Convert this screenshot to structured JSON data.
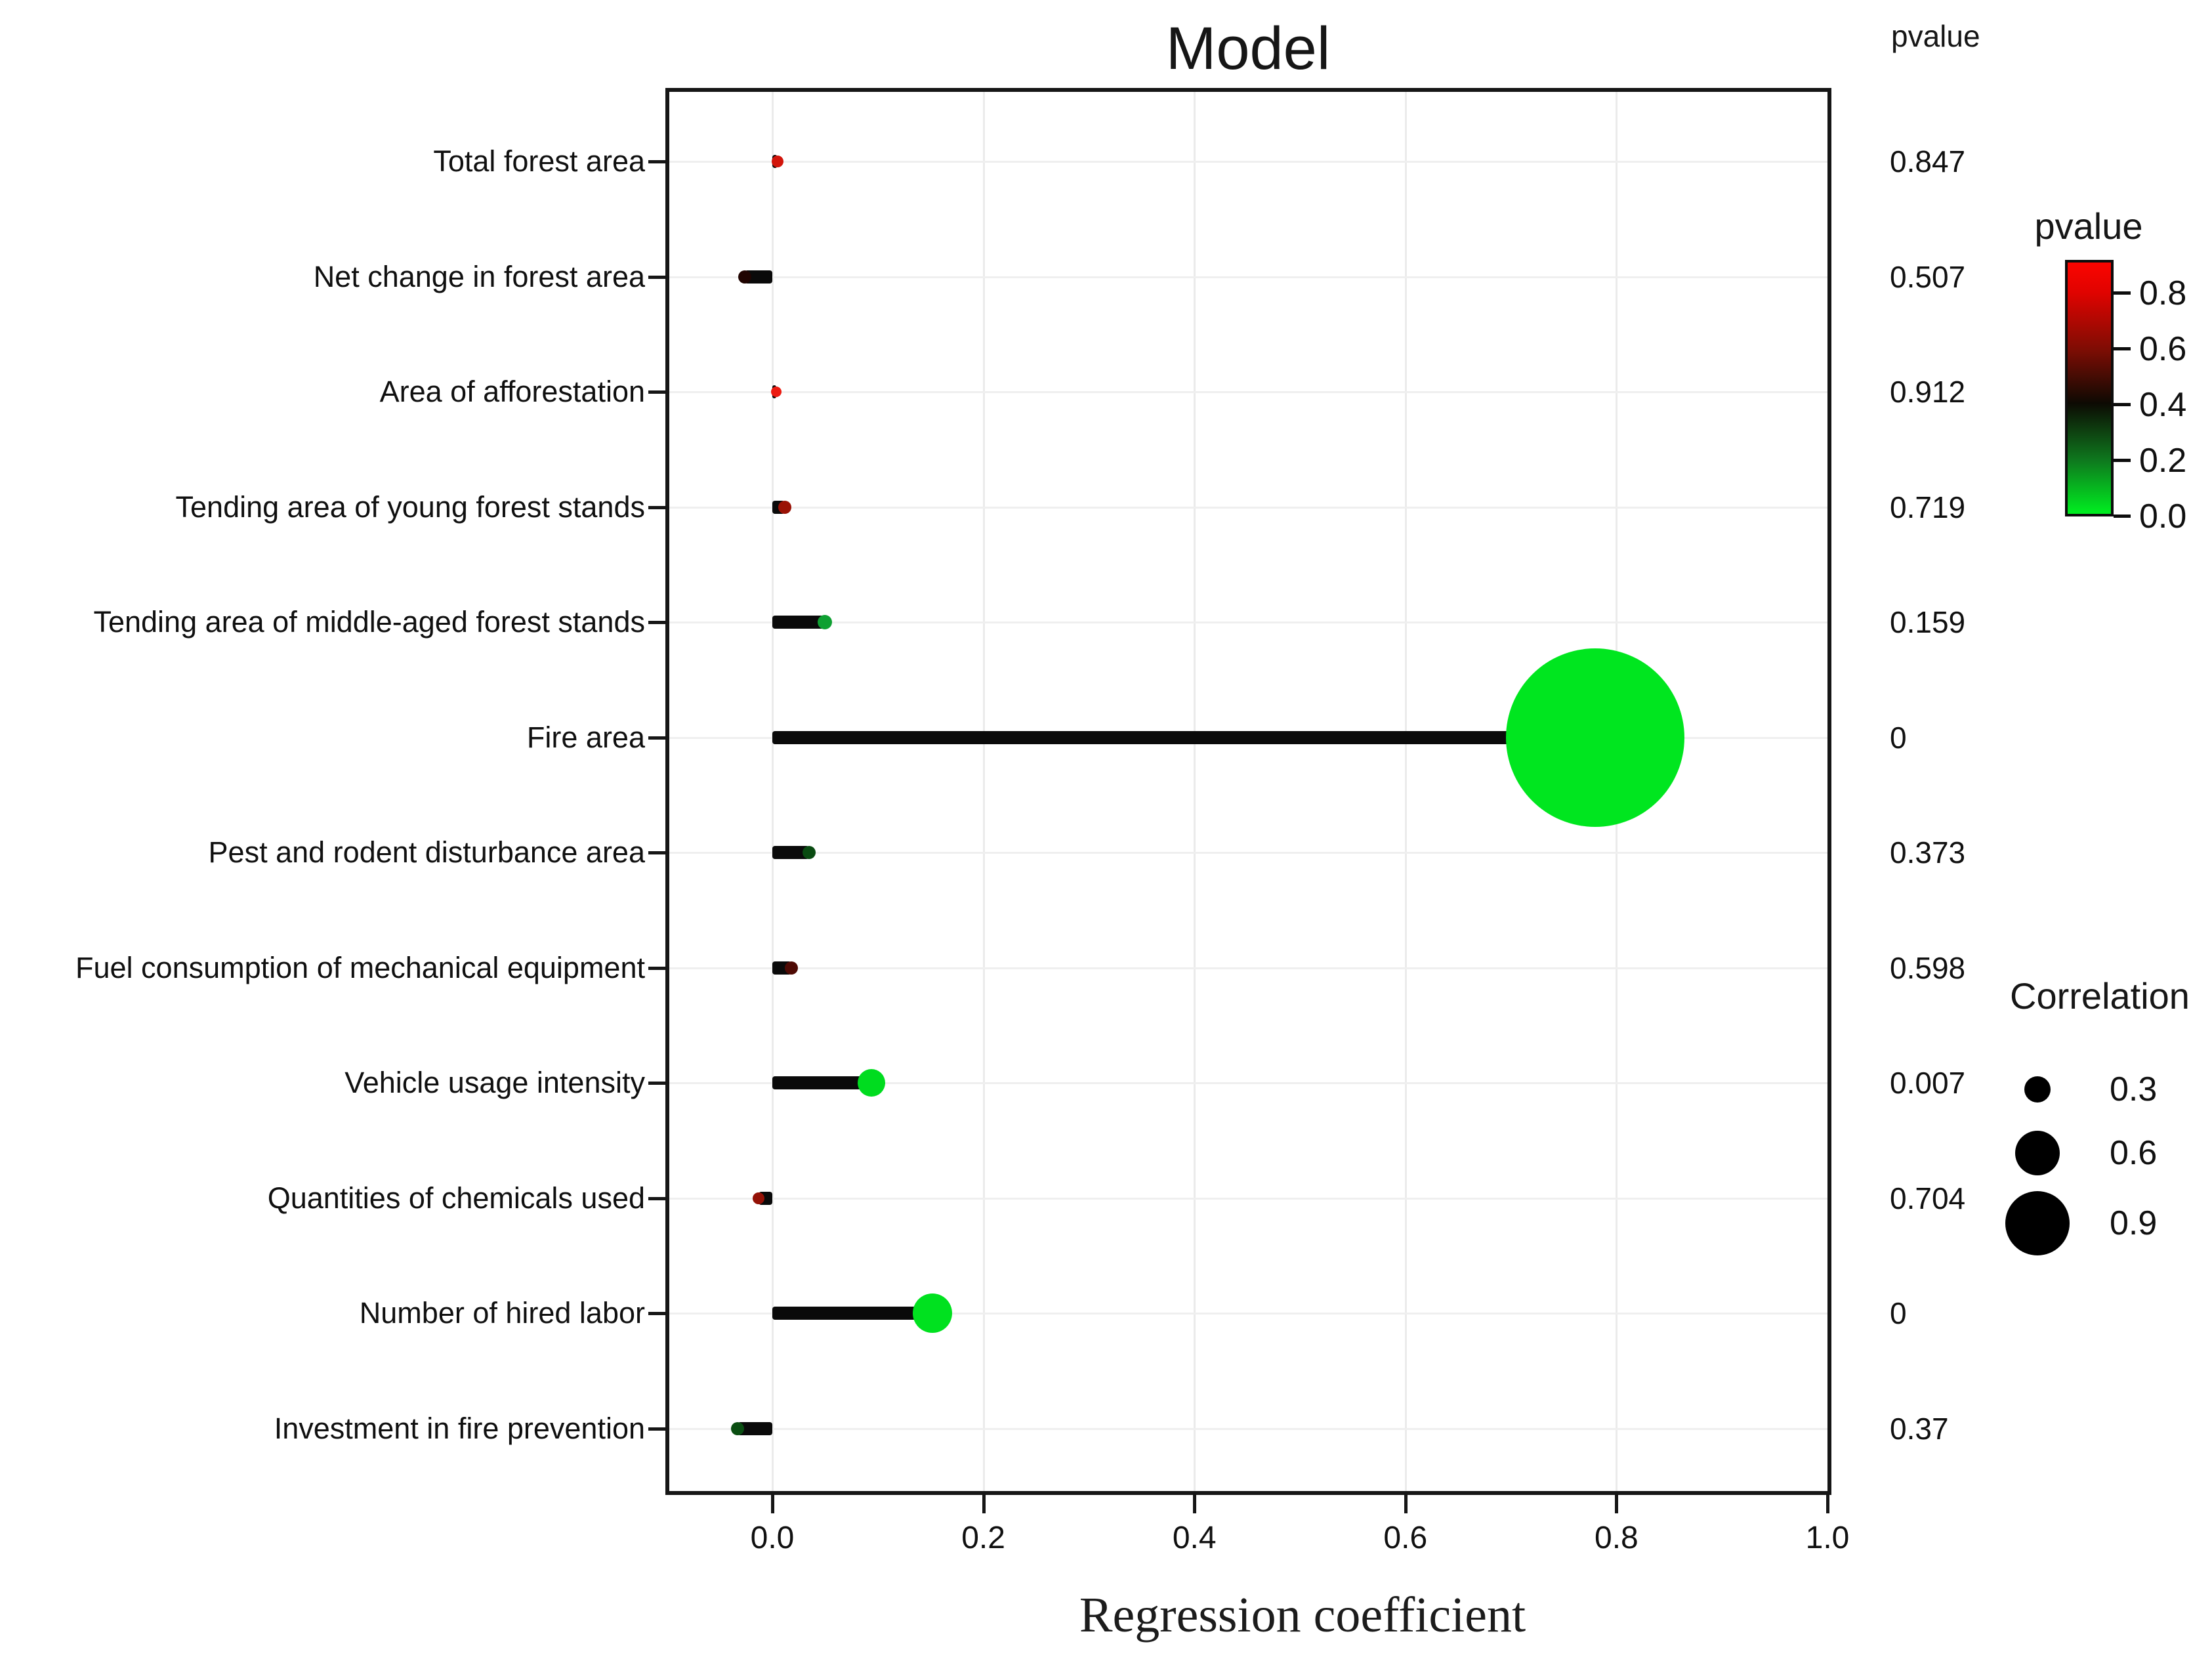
{
  "title": "Model",
  "pvalue_column_header": "pvalue",
  "x_axis": {
    "label": "Regression coefficient",
    "ticks": [
      "0.0",
      "0.2",
      "0.4",
      "0.6",
      "0.8",
      "1.0"
    ]
  },
  "colorbar_legend": {
    "title": "pvalue",
    "ticks": [
      "0.8",
      "0.6",
      "0.4",
      "0.2",
      "0.0"
    ],
    "top_color": "#fb0400",
    "mid_color": "#0d0a03",
    "bottom_color": "#00ef20"
  },
  "size_legend": {
    "title": "Correlation",
    "items": [
      {
        "label": "0.3",
        "r": 20
      },
      {
        "label": "0.6",
        "r": 34
      },
      {
        "label": "0.9",
        "r": 49
      }
    ]
  },
  "chart_data": {
    "type": "scatter",
    "style": "lollipop",
    "title": "Model",
    "xlabel": "Regression coefficient",
    "xlim": [
      -0.098,
      1.0
    ],
    "x_tick_values": [
      0.0,
      0.2,
      0.4,
      0.6,
      0.8,
      1.0
    ],
    "grid": "major-only",
    "rows": [
      {
        "label": "Total forest area",
        "coef": 0.005,
        "pvalue": "0.847",
        "dot_color": "#D2150B",
        "dot_r": 9
      },
      {
        "label": "Net change in forest area",
        "coef": -0.026,
        "pvalue": "0.507",
        "dot_color": "#200401",
        "dot_r": 10
      },
      {
        "label": "Area of afforestation",
        "coef": 0.004,
        "pvalue": "0.912",
        "dot_color": "#EC1B11",
        "dot_r": 8
      },
      {
        "label": "Tending area of young forest stands",
        "coef": 0.012,
        "pvalue": "0.719",
        "dot_color": "#9A1206",
        "dot_r": 10
      },
      {
        "label": "Tending area of middle-aged forest stands",
        "coef": 0.05,
        "pvalue": "0.159",
        "dot_color": "#0FA032",
        "dot_r": 11
      },
      {
        "label": "Fire area",
        "coef": 0.78,
        "pvalue": "0",
        "dot_color": "#00E61F",
        "dot_r": 136
      },
      {
        "label": "Pest and rodent disturbance area",
        "coef": 0.035,
        "pvalue": "0.373",
        "dot_color": "#094B11",
        "dot_r": 10
      },
      {
        "label": "Fuel consumption of mechanical equipment",
        "coef": 0.018,
        "pvalue": "0.598",
        "dot_color": "#4E0A04",
        "dot_r": 10
      },
      {
        "label": "Vehicle usage intensity",
        "coef": 0.094,
        "pvalue": "0.007",
        "dot_color": "#00DC1F",
        "dot_r": 21
      },
      {
        "label": "Quantities of chemicals used",
        "coef": -0.013,
        "pvalue": "0.704",
        "dot_color": "#941106",
        "dot_r": 9
      },
      {
        "label": "Number of hired labor",
        "coef": 0.152,
        "pvalue": "0",
        "dot_color": "#00E11F",
        "dot_r": 30
      },
      {
        "label": "Investment in fire prevention",
        "coef": -0.033,
        "pvalue": "0.37",
        "dot_color": "#0A4E12",
        "dot_r": 10
      }
    ],
    "bar_color": "#0a0a0a",
    "legend_position": "right"
  }
}
